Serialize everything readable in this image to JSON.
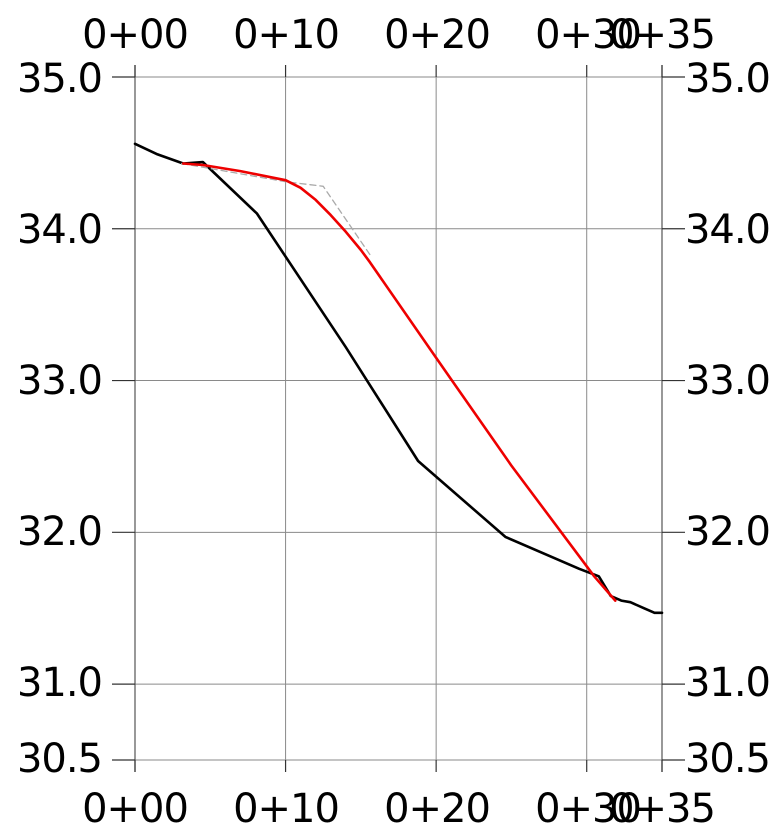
{
  "chart_data": {
    "type": "line",
    "title": "",
    "xlabel": "",
    "ylabel": "",
    "x_tick_labels": [
      "0+00",
      "0+10",
      "0+20",
      "0+30",
      "0+35"
    ],
    "x_tick_values": [
      0,
      10,
      20,
      30,
      35
    ],
    "y_tick_labels": [
      "35.0",
      "34.0",
      "33.0",
      "32.0",
      "31.0",
      "30.5"
    ],
    "y_tick_values": [
      35.0,
      34.0,
      33.0,
      32.0,
      31.0,
      30.5
    ],
    "xlim": [
      0,
      35
    ],
    "ylim": [
      30.5,
      35.0
    ],
    "grid": true,
    "legend": "none",
    "series": [
      {
        "color": "#000000",
        "style": "solid",
        "x": [
          0,
          1.5,
          3.2,
          4.5,
          8.1,
          14,
          18.8,
          24.6,
          29.5,
          30.8,
          31.6,
          32.3,
          32.9,
          33.8,
          34.5,
          35
        ],
        "y": [
          34.56,
          34.49,
          34.43,
          34.44,
          34.1,
          33.22,
          32.47,
          31.97,
          31.76,
          31.71,
          31.58,
          31.55,
          31.54,
          31.5,
          31.47,
          31.47
        ]
      },
      {
        "color": "#aaaaaa",
        "style": "dashed",
        "x": [
          3.1,
          10,
          12.5,
          15.6
        ],
        "y": [
          34.43,
          34.31,
          34.28,
          33.83
        ]
      },
      {
        "color": "#ee0000",
        "style": "solid",
        "x": [
          3.2,
          4.5,
          7,
          10,
          11,
          12,
          13,
          14,
          15,
          15.6,
          20,
          25,
          30.5,
          31.9
        ],
        "y": [
          34.43,
          34.42,
          34.38,
          34.32,
          34.27,
          34.19,
          34.09,
          33.98,
          33.86,
          33.78,
          33.15,
          32.44,
          31.71,
          31.55
        ]
      }
    ]
  }
}
